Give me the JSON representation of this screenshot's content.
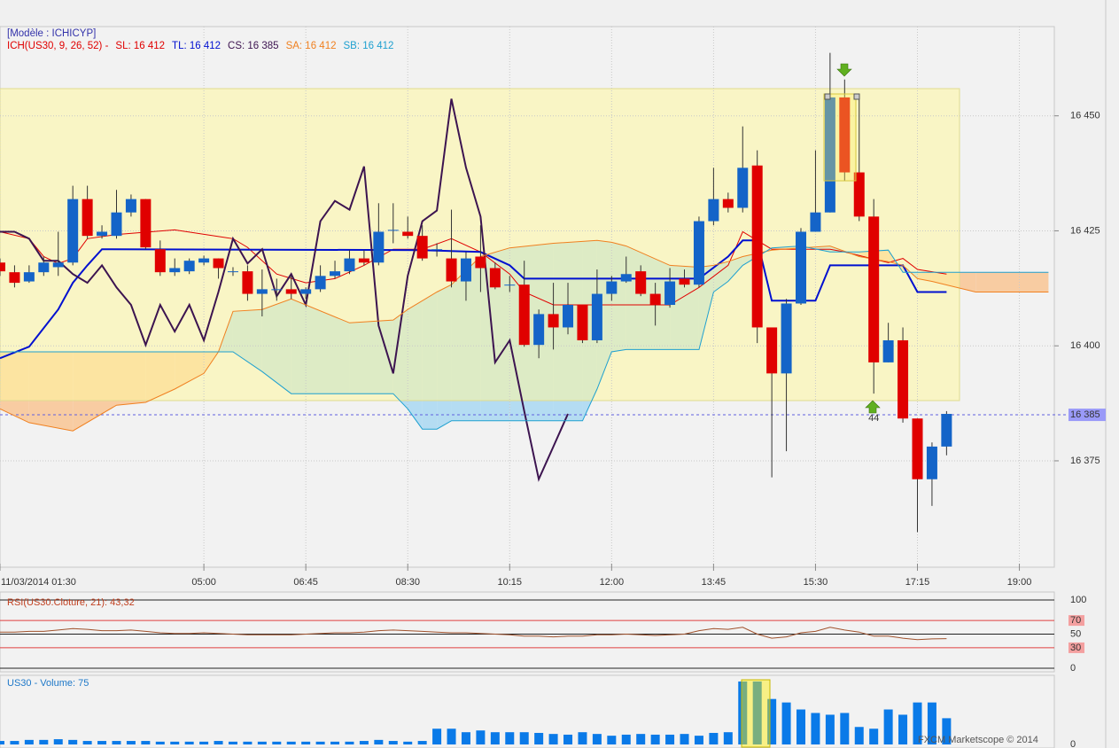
{
  "header": {
    "model": "[Modèle : ICHICYP]",
    "footer": "FXCM Marketscope © 2014"
  },
  "chart_data": [
    {
      "type": "candlestick",
      "legend_prefix": "ICH(US30, 9, 26, 52) -",
      "legend_prefix_color": "#e00000",
      "x": [
        0,
        1,
        2,
        3,
        4,
        5,
        6,
        7,
        8,
        9,
        10,
        11,
        12,
        13,
        14,
        15,
        16,
        17,
        18,
        19,
        20,
        21,
        22,
        23,
        24,
        25,
        26,
        27,
        28,
        29,
        30,
        31,
        32,
        33,
        34,
        35,
        36,
        37,
        38,
        39,
        40,
        41,
        42,
        43,
        44,
        45,
        46,
        47,
        48,
        49,
        50,
        51,
        52,
        53,
        54,
        55,
        56,
        57,
        58,
        59,
        60,
        61,
        62,
        63,
        64,
        65
      ],
      "open": [
        16418.1,
        16416.0,
        16414.0,
        16416.0,
        16417.1,
        16418.1,
        16431.9,
        16423.9,
        16423.9,
        16429.0,
        16431.9,
        16421.0,
        16416.0,
        16416.2,
        16418.1,
        16419.0,
        16416.2,
        16416.2,
        16411.3,
        16412.3,
        16412.3,
        16411.3,
        16412.3,
        16415.2,
        16416.2,
        16419.0,
        16418.1,
        16425.2,
        16424.8,
        16423.9,
        16421.0,
        16419.0,
        16414.0,
        16419.4,
        16416.9,
        16413.3,
        16413.3,
        16400.2,
        16406.9,
        16404.0,
        16408.9,
        16401.2,
        16411.3,
        16414.0,
        16416.2,
        16411.3,
        16408.9,
        16414.6,
        16413.3,
        16427.1,
        16431.9,
        16430.0,
        16439.2,
        16404.0,
        16394.0,
        16409.2,
        16424.8,
        16429.0,
        16454.0,
        16437.7,
        16428.1,
        16396.4,
        16401.2,
        16384.2,
        16371.0,
        16378.1
      ],
      "high": [
        16419.0,
        16417.5,
        16417.5,
        16419.4,
        16424.8,
        16434.8,
        16434.8,
        16426.2,
        16433.9,
        16432.9,
        16431.9,
        16422.9,
        16419.0,
        16419.0,
        16419.6,
        16419.0,
        16417.1,
        16417.5,
        16416.6,
        16414.6,
        16415.2,
        16412.7,
        16417.5,
        16418.5,
        16420.8,
        16420.8,
        16431.0,
        16431.0,
        16428.1,
        16426.2,
        16422.3,
        16429.6,
        16420.4,
        16426.2,
        16418.1,
        16415.2,
        16418.5,
        16407.9,
        16413.7,
        16413.7,
        16408.9,
        16416.6,
        16415.2,
        16419.4,
        16417.5,
        16413.7,
        16416.9,
        16416.6,
        16428.1,
        16438.7,
        16433.3,
        16447.7,
        16442.5,
        16404.0,
        16410.2,
        16425.6,
        16442.5,
        16463.7,
        16457.9,
        16454.4,
        16431.9,
        16405.0,
        16404.0,
        16384.2,
        16379.0,
        16385.8
      ],
      "low": [
        16415.2,
        16412.7,
        16413.7,
        16415.2,
        16415.2,
        16417.5,
        16423.3,
        16423.3,
        16423.3,
        16428.1,
        16421.0,
        16415.2,
        16415.2,
        16415.6,
        16417.5,
        16414.6,
        16415.2,
        16409.8,
        16406.4,
        16409.8,
        16410.2,
        16410.2,
        16411.7,
        16414.6,
        16415.6,
        16417.5,
        16417.5,
        16422.3,
        16423.3,
        16418.5,
        16419.4,
        16412.7,
        16409.8,
        16411.7,
        16412.3,
        16411.7,
        16399.8,
        16397.3,
        16399.2,
        16402.5,
        16400.6,
        16400.6,
        16409.8,
        16413.7,
        16410.8,
        16404.4,
        16408.3,
        16412.7,
        16412.7,
        16426.2,
        16429.0,
        16429.0,
        16400.6,
        16371.4,
        16377.1,
        16408.9,
        16424.8,
        16429.0,
        16435.8,
        16427.1,
        16389.6,
        16396.4,
        16383.3,
        16359.5,
        16365.2,
        16376.2
      ],
      "close": [
        16416.2,
        16413.7,
        16416.0,
        16418.1,
        16418.1,
        16431.9,
        16423.9,
        16424.8,
        16429.0,
        16431.9,
        16421.4,
        16416.0,
        16416.9,
        16418.5,
        16419.0,
        16416.9,
        16416.2,
        16411.3,
        16412.3,
        16412.3,
        16411.3,
        16412.3,
        16415.2,
        16416.2,
        16419.0,
        16418.1,
        16424.8,
        16425.2,
        16423.9,
        16419.0,
        16421.0,
        16414.0,
        16419.0,
        16416.9,
        16412.7,
        16413.3,
        16400.2,
        16406.9,
        16404.0,
        16408.9,
        16401.2,
        16411.3,
        16414.0,
        16415.6,
        16411.3,
        16408.9,
        16414.0,
        16413.3,
        16427.1,
        16431.9,
        16430.0,
        16438.7,
        16404.0,
        16394.0,
        16409.2,
        16424.8,
        16429.0,
        16454.0,
        16437.7,
        16428.1,
        16396.4,
        16401.2,
        16384.2,
        16371.0,
        16378.1,
        16385.2
      ],
      "up_color": "#1464c8",
      "down_color": "#e00000",
      "wick_color": "#333333",
      "lines": {
        "SL": {
          "label": "SL: 16 412",
          "color": "#e00000",
          "width": 1,
          "x": [
            0,
            2,
            3,
            4,
            5,
            6,
            8,
            12,
            16,
            17,
            19,
            21,
            23,
            25,
            27,
            29,
            31,
            33,
            35,
            36,
            38,
            46,
            48,
            50,
            51,
            52,
            53,
            57,
            58,
            61,
            62,
            63,
            65
          ],
          "values": [
            16424.8,
            16423.3,
            16419.4,
            16417.9,
            16419.0,
            16423.3,
            16424.2,
            16425.2,
            16423.3,
            16421.4,
            16415.6,
            16413.7,
            16414.6,
            16417.5,
            16421.0,
            16421.0,
            16423.3,
            16420.4,
            16415.6,
            16411.7,
            16408.9,
            16408.9,
            16412.7,
            16417.5,
            16424.8,
            16422.9,
            16421.0,
            16421.0,
            16420.4,
            16418.1,
            16419.0,
            16416.6,
            16415.6
          ]
        },
        "TL": {
          "label": "TL: 16 412",
          "color": "#0010d0",
          "width": 2,
          "x": [
            0,
            2,
            4,
            5,
            6,
            7,
            29,
            33,
            35,
            36,
            48,
            50,
            51,
            52,
            53,
            56,
            57,
            62,
            63,
            65
          ],
          "values": [
            16397.3,
            16399.8,
            16407.9,
            16413.7,
            16417.5,
            16421.0,
            16420.8,
            16420.4,
            16417.5,
            16414.6,
            16414.6,
            16419.4,
            16422.9,
            16422.9,
            16409.8,
            16409.8,
            16417.5,
            16417.5,
            16411.7,
            16411.7
          ]
        },
        "CS": {
          "label": "CS: 16 385",
          "color": "#3c1450",
          "width": 2,
          "x": [
            0,
            1,
            2,
            3,
            4,
            5,
            6,
            7,
            8,
            9,
            10,
            11,
            12,
            13,
            14,
            15,
            16,
            17,
            18,
            19,
            20,
            21,
            22,
            23,
            24,
            25,
            26,
            27,
            28,
            29,
            30,
            31,
            32,
            33,
            34,
            35,
            36,
            37,
            38,
            39
          ],
          "values": [
            16424.8,
            16424.8,
            16423.3,
            16418.5,
            16418.5,
            16415.6,
            16413.7,
            16417.5,
            16412.7,
            16408.9,
            16400.2,
            16408.9,
            16403.1,
            16408.9,
            16401.2,
            16411.7,
            16423.3,
            16417.9,
            16421.0,
            16410.8,
            16415.6,
            16408.9,
            16427.1,
            16431.5,
            16429.6,
            16439.0,
            16404.4,
            16394.0,
            16415.2,
            16427.1,
            16429.4,
            16453.7,
            16438.7,
            16428.1,
            16396.4,
            16401.2,
            16385.8,
            16371.0,
            16378.1,
            16385.2
          ]
        },
        "SA": {
          "label": "SA: 16 412",
          "color": "#f08020",
          "width": 1,
          "x": [
            0,
            2,
            5,
            8,
            10,
            12,
            14,
            15,
            16,
            18,
            20,
            24,
            27,
            28,
            29,
            30,
            31,
            33,
            35,
            38,
            40,
            41,
            42,
            43,
            46,
            48,
            49,
            50,
            51,
            53,
            55,
            57,
            59,
            61,
            62,
            63,
            64,
            67,
            72
          ],
          "values": [
            16386.3,
            16383.3,
            16381.5,
            16387.1,
            16387.7,
            16390.6,
            16394.0,
            16398.7,
            16407.5,
            16407.9,
            16410.2,
            16405.0,
            16405.6,
            16407.9,
            16409.8,
            16411.7,
            16413.3,
            16419.4,
            16421.3,
            16422.3,
            16422.7,
            16422.9,
            16422.5,
            16421.7,
            16417.5,
            16417.1,
            16417.5,
            16418.3,
            16419.4,
            16420.8,
            16421.3,
            16421.7,
            16419.4,
            16418.3,
            16417.5,
            16414.6,
            16414.0,
            16411.7,
            16411.7
          ]
        },
        "SB": {
          "label": "SB: 16 412",
          "color": "#1ea0d0",
          "width": 1,
          "x": [
            0,
            2,
            5,
            8,
            10,
            12,
            14,
            15,
            16,
            18,
            20,
            24,
            27,
            28,
            29,
            30,
            31,
            33,
            35,
            38,
            40,
            41,
            42,
            43,
            46,
            48,
            49,
            50,
            51,
            53,
            55,
            57,
            59,
            61,
            62,
            63,
            64,
            67,
            72
          ],
          "values": [
            16398.7,
            16398.7,
            16398.7,
            16398.7,
            16398.7,
            16398.7,
            16398.7,
            16398.7,
            16398.7,
            16394.4,
            16389.6,
            16389.6,
            16389.6,
            16386.3,
            16381.9,
            16381.9,
            16383.7,
            16383.7,
            16383.7,
            16383.7,
            16383.7,
            16390.6,
            16398.7,
            16399.2,
            16399.2,
            16399.2,
            16411.7,
            16414.0,
            16417.5,
            16421.3,
            16421.7,
            16420.4,
            16420.4,
            16420.8,
            16416.0,
            16416.0,
            16416.0,
            16416.0,
            16416.0
          ]
        }
      },
      "cloud_colors": {
        "bullish": "#b4dcf2",
        "bearish": "#f8cca2"
      },
      "xlim": [
        0,
        72.4
      ],
      "ylim": [
        16353.8,
        16469.4
      ],
      "xticks": [
        {
          "value": 0,
          "label": "11/03/2014 01:30"
        },
        {
          "value": 14,
          "label": "05:00"
        },
        {
          "value": 21,
          "label": "06:45"
        },
        {
          "value": 28,
          "label": "08:30"
        },
        {
          "value": 35,
          "label": "10:15"
        },
        {
          "value": 42,
          "label": "12:00"
        },
        {
          "value": 49,
          "label": "13:45"
        },
        {
          "value": 56,
          "label": "15:30"
        },
        {
          "value": 63,
          "label": "17:15"
        },
        {
          "value": 70,
          "label": "19:00"
        }
      ],
      "yticks": [
        {
          "value": 16375,
          "label": "16 375"
        },
        {
          "value": 16400,
          "label": "16 400"
        },
        {
          "value": 16425,
          "label": "16 425"
        },
        {
          "value": 16450,
          "label": "16 450"
        }
      ],
      "price_marker": {
        "value": 16385,
        "label": "16 385"
      },
      "annotations": [
        {
          "text": "44",
          "x": 60
        }
      ],
      "grid": true
    },
    {
      "type": "line",
      "title": "RSI(US30.Cloture, 21): 43,32",
      "title_color": "#c04020",
      "color": "#a0522d",
      "values": [
        53,
        53,
        54,
        54,
        56,
        58,
        57,
        55,
        55,
        56,
        54,
        52,
        51,
        51,
        52,
        51,
        50,
        49,
        49,
        49,
        49,
        50,
        51,
        52,
        52,
        53,
        55,
        56,
        55,
        54,
        53,
        52,
        52,
        51,
        50,
        49,
        47,
        47,
        46,
        47,
        47,
        49,
        49,
        50,
        49,
        48,
        49,
        50,
        55,
        58,
        57,
        60,
        50,
        44,
        46,
        52,
        54,
        60,
        56,
        53,
        47,
        47,
        44,
        42,
        43,
        43.32
      ],
      "ylim": [
        0,
        100
      ],
      "yticks": [
        100,
        70,
        50,
        30,
        0
      ],
      "levels": [
        70,
        30
      ],
      "level_color": "#e04040"
    },
    {
      "type": "bar",
      "title": "US30 - Volume: 75",
      "title_color": "#1e78c8",
      "color": "#0a7ae8",
      "values": [
        10,
        10,
        13,
        13,
        15,
        13,
        10,
        10,
        10,
        10,
        10,
        8,
        8,
        8,
        8,
        10,
        8,
        8,
        8,
        8,
        8,
        8,
        8,
        8,
        8,
        10,
        13,
        10,
        8,
        10,
        45,
        45,
        35,
        40,
        35,
        35,
        35,
        33,
        30,
        28,
        35,
        30,
        25,
        28,
        30,
        28,
        28,
        30,
        25,
        33,
        35,
        180,
        180,
        130,
        120,
        100,
        90,
        85,
        90,
        50,
        45,
        100,
        85,
        120,
        120,
        75
      ],
      "ylim": [
        0,
        190
      ],
      "yticks": [
        0
      ]
    }
  ]
}
